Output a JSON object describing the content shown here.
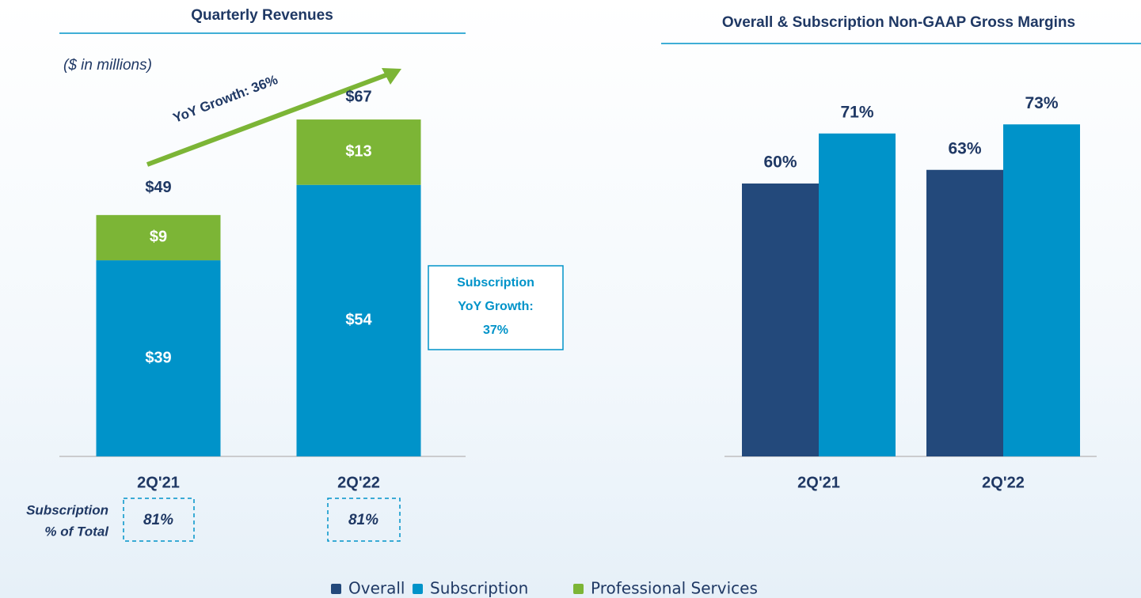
{
  "chart_data": [
    {
      "type": "bar",
      "stacked": true,
      "title": "Quarterly Revenues",
      "subtitle": "($ in millions)",
      "categories": [
        "2Q'21",
        "2Q'22"
      ],
      "series": [
        {
          "name": "Subscription",
          "color": "#0093c9",
          "values": [
            39,
            54
          ],
          "value_labels": [
            "$39",
            "$54"
          ]
        },
        {
          "name": "Professional Services",
          "color": "#7cb536",
          "values": [
            9,
            13
          ],
          "value_labels": [
            "$9",
            "$13"
          ]
        }
      ],
      "totals": [
        49,
        67
      ],
      "total_labels": [
        "$49",
        "$67"
      ],
      "ylim": [
        0,
        70
      ],
      "annotations": {
        "growth": "YoY Growth: 36%",
        "subscription_growth": [
          "Subscription",
          "YoY Growth:",
          "37%"
        ],
        "share_title": [
          "Subscription",
          "% of Total"
        ],
        "share_labels": [
          "81%",
          "81%"
        ]
      }
    },
    {
      "type": "bar",
      "stacked": false,
      "title": "Overall & Subscription Non-GAAP Gross Margins",
      "categories": [
        "2Q'21",
        "2Q'22"
      ],
      "series": [
        {
          "name": "Overall",
          "color": "#23497b",
          "values": [
            60,
            63
          ],
          "value_labels": [
            "60%",
            "63%"
          ]
        },
        {
          "name": "Subscription",
          "color": "#0093c9",
          "values": [
            71,
            73
          ],
          "value_labels": [
            "71%",
            "73%"
          ]
        }
      ],
      "ylim": [
        0,
        80
      ]
    }
  ]
}
